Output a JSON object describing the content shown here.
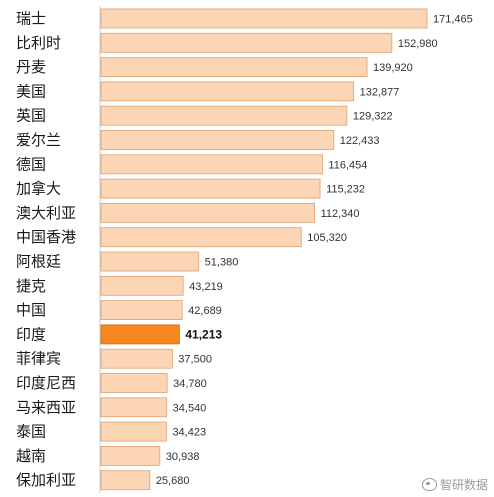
{
  "chart_data": {
    "type": "bar",
    "orientation": "horizontal",
    "categories": [
      "瑞士",
      "比利时",
      "丹麦",
      "美国",
      "英国",
      "爱尔兰",
      "德国",
      "加拿大",
      "澳大利亚",
      "中国香港",
      "阿根廷",
      "捷克",
      "中国",
      "印度",
      "菲律宾",
      "印度尼西",
      "马来西亚",
      "泰国",
      "越南",
      "保加利亚"
    ],
    "values": [
      171465,
      152980,
      139920,
      132877,
      129322,
      122433,
      116454,
      115232,
      112340,
      105320,
      51380,
      43219,
      42689,
      41213,
      37500,
      34780,
      34540,
      34423,
      30938,
      25680
    ],
    "value_labels": [
      "171,465",
      "152,980",
      "139,920",
      "132,877",
      "129,322",
      "122,433",
      "116,454",
      "115,232",
      "112,340",
      "105,320",
      "51,380",
      "43,219",
      "42,689",
      "41,213",
      "37,500",
      "34,780",
      "34,540",
      "34,423",
      "30,938",
      "25,680"
    ],
    "highlight_category": "印度",
    "bar_color": "#fcd5b4",
    "bar_border_color": "#e0a070",
    "highlight_color": "#f7861e",
    "axis_line": true,
    "grid": false,
    "xlim": [
      0,
      171465
    ]
  },
  "watermark": {
    "text": "智研数据",
    "icon": "weibo-icon"
  }
}
